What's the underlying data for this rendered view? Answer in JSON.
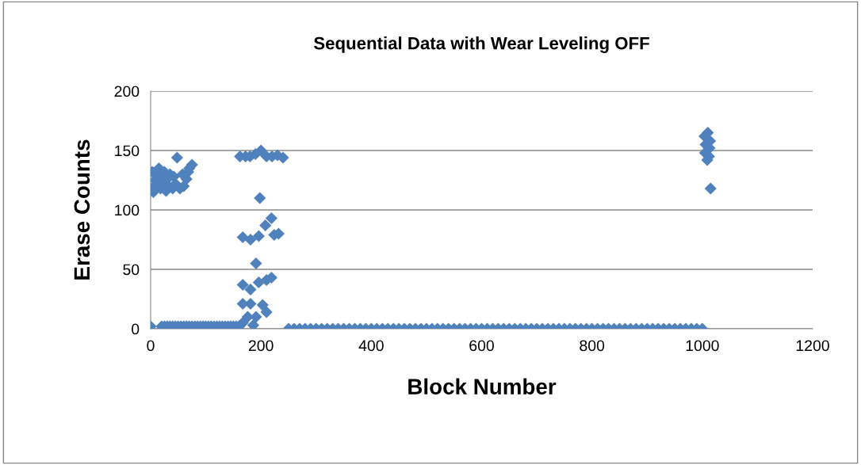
{
  "chart_data": {
    "type": "scatter",
    "title": "Sequential Data with Wear Leveling OFF",
    "xlabel": "Block Number",
    "ylabel": "Erase Counts",
    "xlim": [
      0,
      1200
    ],
    "xticks": [
      0,
      200,
      400,
      600,
      800,
      1000,
      1200
    ],
    "ylim": [
      0,
      200
    ],
    "yticks": [
      0,
      50,
      100,
      150,
      200
    ],
    "grid": "y",
    "marker": "diamond",
    "series": [
      {
        "color": "#4f81bd",
        "x": [
          0,
          20,
          25,
          30,
          35,
          40,
          45,
          50,
          55,
          60,
          65,
          70,
          75,
          80,
          85,
          90,
          95,
          100,
          105,
          110,
          115,
          120,
          125,
          130,
          135,
          140,
          145,
          150,
          155,
          160,
          2,
          3,
          5,
          8,
          10,
          12,
          15,
          18,
          20,
          22,
          25,
          28,
          30,
          33,
          35,
          40,
          42,
          45,
          48,
          53,
          58,
          60,
          65,
          68,
          70,
          75,
          162,
          172,
          180,
          190,
          200,
          210,
          220,
          230,
          240,
          198,
          167,
          181,
          196,
          208,
          219,
          224,
          232,
          191,
          167,
          181,
          196,
          210,
          219,
          167,
          181,
          203,
          210,
          176,
          191,
          167,
          186,
          250,
          260,
          270,
          280,
          290,
          300,
          310,
          320,
          330,
          340,
          350,
          360,
          370,
          380,
          390,
          400,
          410,
          420,
          430,
          440,
          450,
          460,
          470,
          480,
          490,
          500,
          510,
          520,
          530,
          540,
          550,
          560,
          570,
          580,
          590,
          600,
          610,
          620,
          630,
          640,
          650,
          660,
          670,
          680,
          690,
          700,
          710,
          720,
          730,
          740,
          750,
          760,
          770,
          780,
          790,
          800,
          810,
          820,
          830,
          840,
          850,
          860,
          870,
          880,
          890,
          900,
          910,
          920,
          930,
          940,
          950,
          960,
          970,
          980,
          990,
          1000,
          1004,
          1006,
          1010,
          1012,
          1014,
          1005,
          1009,
          1013,
          1015
        ],
        "values": [
          2,
          2,
          2,
          2,
          2,
          2,
          2,
          2,
          2,
          2,
          2,
          2,
          2,
          2,
          2,
          2,
          2,
          2,
          2,
          2,
          2,
          2,
          2,
          2,
          2,
          2,
          2,
          2,
          2,
          2,
          118,
          132,
          115,
          125,
          120,
          130,
          135,
          118,
          128,
          122,
          132,
          116,
          126,
          120,
          130,
          118,
          128,
          122,
          144,
          118,
          130,
          120,
          126,
          132,
          135,
          138,
          145,
          145,
          145,
          147,
          150,
          145,
          145,
          146,
          144,
          110,
          77,
          75,
          78,
          87,
          93,
          79,
          80,
          55,
          37,
          33,
          39,
          41,
          43,
          21,
          21,
          20,
          14,
          10,
          10,
          5,
          3,
          0,
          0,
          0,
          0,
          0,
          0,
          0,
          0,
          0,
          0,
          0,
          0,
          0,
          0,
          0,
          0,
          0,
          0,
          0,
          0,
          0,
          0,
          0,
          0,
          0,
          0,
          0,
          0,
          0,
          0,
          0,
          0,
          0,
          0,
          0,
          0,
          0,
          0,
          0,
          0,
          0,
          0,
          0,
          0,
          0,
          0,
          0,
          0,
          0,
          0,
          0,
          0,
          0,
          0,
          0,
          0,
          0,
          0,
          0,
          0,
          0,
          0,
          0,
          0,
          0,
          0,
          0,
          0,
          0,
          0,
          0,
          0,
          0,
          0,
          0,
          0,
          162,
          155,
          165,
          145,
          158,
          148,
          142,
          152,
          118
        ]
      }
    ]
  }
}
